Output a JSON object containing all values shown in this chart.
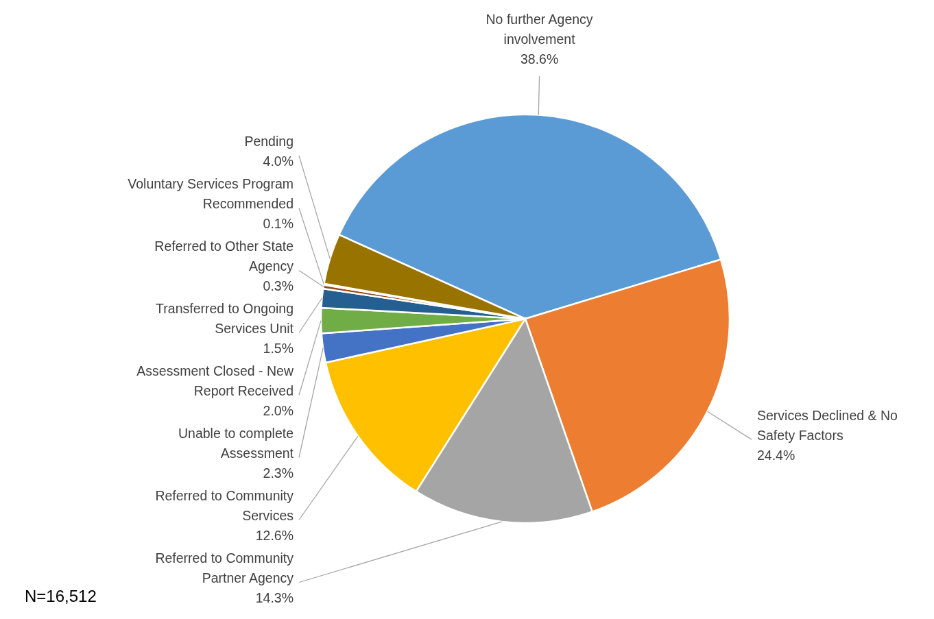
{
  "chart_data": {
    "type": "pie",
    "categories": [
      "No further Agency involvement",
      "Services Declined & No Safety Factors",
      "Referred to Community Partner Agency",
      "Referred to Community  Services",
      "Unable to complete Assessment",
      "Assessment Closed - New Report Received",
      "Transferred to Ongoing Services Unit",
      "Referred to Other State Agency",
      "Voluntary Services Program Recommended",
      "Pending"
    ],
    "values": [
      38.6,
      24.4,
      14.3,
      12.6,
      2.3,
      2.0,
      1.5,
      0.3,
      0.1,
      4.0
    ],
    "value_labels": [
      "38.6%",
      "24.4%",
      "14.3%",
      "12.6%",
      "2.3%",
      "2.0%",
      "1.5%",
      "0.3%",
      "0.1%",
      "4.0%"
    ],
    "colors": [
      "#5b9bd5",
      "#ed7d31",
      "#a5a5a5",
      "#ffc000",
      "#4472c4",
      "#70ad47",
      "#255e91",
      "#9e480e",
      "#636363",
      "#997300"
    ],
    "annotations": [
      "N=16,512"
    ]
  }
}
